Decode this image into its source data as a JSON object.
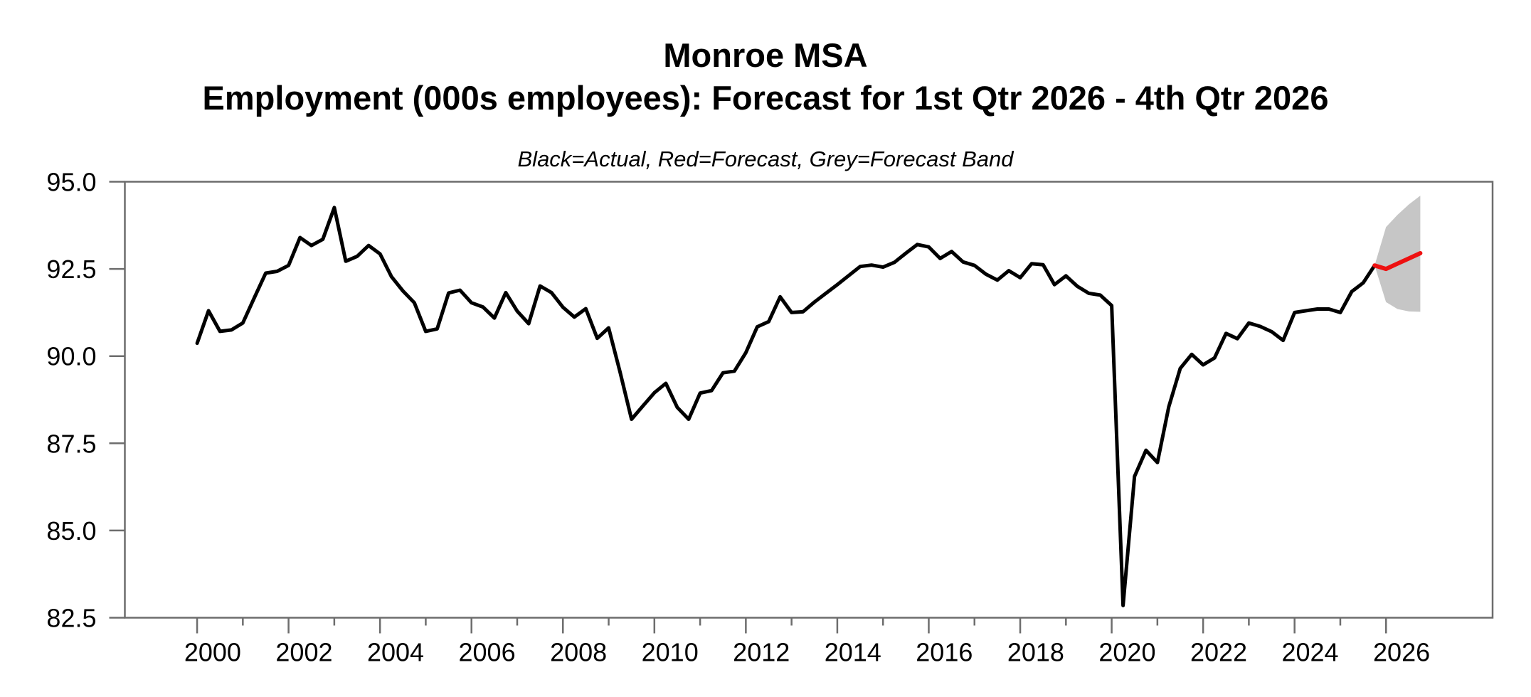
{
  "chart_data": {
    "type": "line",
    "title": "Monroe MSA",
    "subtitle": "Employment (000s employees): Forecast for 1st Qtr 2026 - 4th Qtr 2026",
    "legend_note": "Black=Actual, Red=Forecast, Grey=Forecast Band",
    "ylabel": "",
    "xlabel": "",
    "ylim": [
      82.5,
      95.0
    ],
    "xlim_years": [
      1998.42,
      2028.33
    ],
    "yticks": [
      95.0,
      92.5,
      90.0,
      87.5,
      85.0,
      82.5
    ],
    "ytick_labels": [
      "95.0",
      "92.5",
      "90.0",
      "87.5",
      "85.0",
      "82.5"
    ],
    "xtick_major_years": [
      2000,
      2002,
      2004,
      2006,
      2008,
      2010,
      2012,
      2014,
      2016,
      2018,
      2020,
      2022,
      2024,
      2026
    ],
    "xtick_minor_years": [
      2001,
      2003,
      2005,
      2007,
      2009,
      2011,
      2013,
      2015,
      2017,
      2019,
      2021,
      2023,
      2025
    ],
    "grid": false,
    "legend_position": "none",
    "frequency": "quarterly",
    "actual": {
      "start": "2000Q1",
      "end": "2025Q4",
      "values": [
        90.37,
        91.3,
        90.71,
        90.75,
        90.95,
        91.67,
        92.38,
        92.43,
        92.6,
        93.4,
        93.17,
        93.35,
        94.26,
        92.72,
        92.86,
        93.17,
        92.93,
        92.28,
        91.87,
        91.53,
        90.71,
        90.78,
        91.81,
        91.89,
        91.53,
        91.41,
        91.09,
        91.82,
        91.29,
        90.93,
        92.01,
        91.82,
        91.4,
        91.12,
        91.36,
        90.51,
        90.81,
        89.54,
        88.19,
        88.57,
        88.95,
        89.22,
        88.53,
        88.19,
        88.94,
        89.01,
        89.52,
        89.57,
        90.1,
        90.84,
        90.99,
        91.7,
        91.25,
        91.27,
        91.55,
        91.8,
        92.05,
        92.31,
        92.57,
        92.61,
        92.55,
        92.69,
        92.95,
        93.2,
        93.13,
        92.8,
        93.0,
        92.7,
        92.6,
        92.35,
        92.18,
        92.45,
        92.25,
        92.65,
        92.62,
        92.05,
        92.3,
        92.0,
        91.8,
        91.75,
        91.45,
        82.85,
        86.55,
        87.3,
        86.95,
        88.55,
        89.65,
        90.05,
        89.75,
        89.95,
        90.65,
        90.5,
        90.95,
        90.85,
        90.7,
        90.45,
        91.25,
        91.3,
        91.35,
        91.35,
        91.25,
        91.85,
        92.1,
        92.6
      ]
    },
    "forecast": {
      "start": "2026Q1",
      "end": "2026Q4",
      "values": [
        92.5,
        92.65,
        92.8,
        92.95
      ]
    },
    "forecast_band": {
      "start": "2026Q1",
      "end": "2026Q4",
      "upper": [
        93.7,
        94.05,
        94.35,
        94.6
      ],
      "lower": [
        91.55,
        91.35,
        91.28,
        91.27
      ]
    },
    "colors": {
      "actual": "#000000",
      "forecast": "#ee1111",
      "band": "#c6c6c6",
      "frame": "#6d6d6d",
      "text": "#000000"
    }
  }
}
